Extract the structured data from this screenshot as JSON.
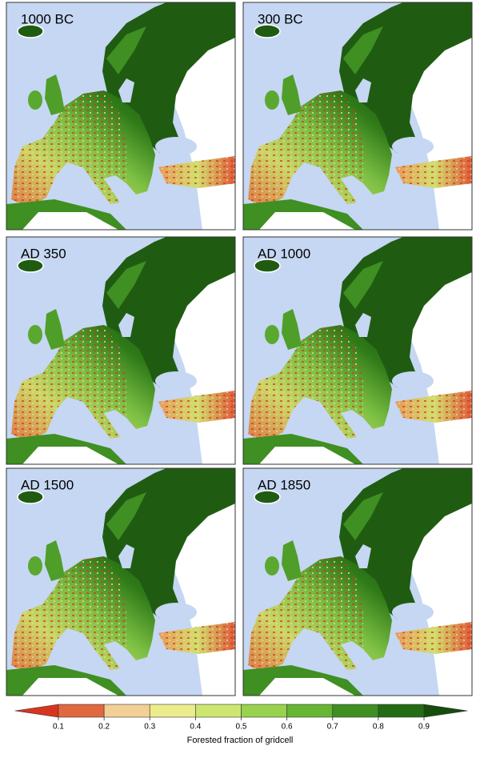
{
  "panels": [
    {
      "label": "1000 BC"
    },
    {
      "label": "300 BC"
    },
    {
      "label": "AD 350"
    },
    {
      "label": "AD 1000"
    },
    {
      "label": "AD 1500"
    },
    {
      "label": "AD 1850"
    }
  ],
  "colorbar": {
    "ticks": [
      0.1,
      0.2,
      0.3,
      0.4,
      0.5,
      0.6,
      0.7,
      0.8,
      0.9
    ],
    "colors": [
      "#d7351f",
      "#e0693f",
      "#f2cf95",
      "#ecec8c",
      "#cde670",
      "#98d24e",
      "#66b634",
      "#3f8f22",
      "#236c14",
      "#154d0a"
    ],
    "label": "Forested fraction of gridcell"
  }
}
